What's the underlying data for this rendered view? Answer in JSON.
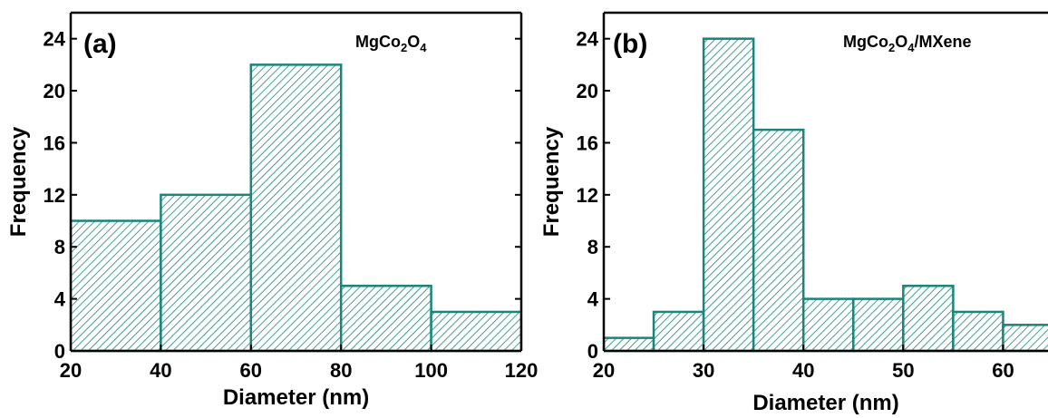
{
  "chart_data": [
    {
      "type": "bar",
      "panel_tag": "(a)",
      "label_main": "MgCo",
      "label_sub1": "2",
      "label_mid": "O",
      "label_sub2": "4",
      "label_tail": "",
      "xlabel": "Diameter (nm)",
      "ylabel": "Frequency",
      "xlim": [
        20,
        120
      ],
      "ylim": [
        0,
        26
      ],
      "xticks": [
        20,
        40,
        60,
        80,
        100,
        120
      ],
      "yticks": [
        0,
        4,
        8,
        12,
        16,
        20,
        24
      ],
      "bins": [
        {
          "x0": 20,
          "x1": 40,
          "value": 10
        },
        {
          "x0": 40,
          "x1": 60,
          "value": 12
        },
        {
          "x0": 60,
          "x1": 80,
          "value": 22
        },
        {
          "x0": 80,
          "x1": 100,
          "value": 5
        },
        {
          "x0": 100,
          "x1": 120,
          "value": 3
        }
      ],
      "bar_color": "#1a857a",
      "grid": false
    },
    {
      "type": "bar",
      "panel_tag": "(b)",
      "label_main": "MgCo",
      "label_sub1": "2",
      "label_mid": "O",
      "label_sub2": "4",
      "label_tail": "/MXene",
      "xlabel": "Diameter (nm)",
      "ylabel": "Frequency",
      "xlim": [
        20,
        64.5
      ],
      "ylim": [
        0,
        26
      ],
      "xticks": [
        20,
        30,
        40,
        50,
        60
      ],
      "yticks": [
        0,
        4,
        8,
        12,
        16,
        20,
        24
      ],
      "bins": [
        {
          "x0": 20,
          "x1": 25,
          "value": 1
        },
        {
          "x0": 25,
          "x1": 30,
          "value": 3
        },
        {
          "x0": 30,
          "x1": 35,
          "value": 24
        },
        {
          "x0": 35,
          "x1": 40,
          "value": 17
        },
        {
          "x0": 40,
          "x1": 45,
          "value": 4
        },
        {
          "x0": 45,
          "x1": 50,
          "value": 4
        },
        {
          "x0": 50,
          "x1": 55,
          "value": 5
        },
        {
          "x0": 55,
          "x1": 60,
          "value": 3
        },
        {
          "x0": 60,
          "x1": 65,
          "value": 2
        }
      ],
      "bar_color": "#1a857a",
      "grid": false
    }
  ]
}
